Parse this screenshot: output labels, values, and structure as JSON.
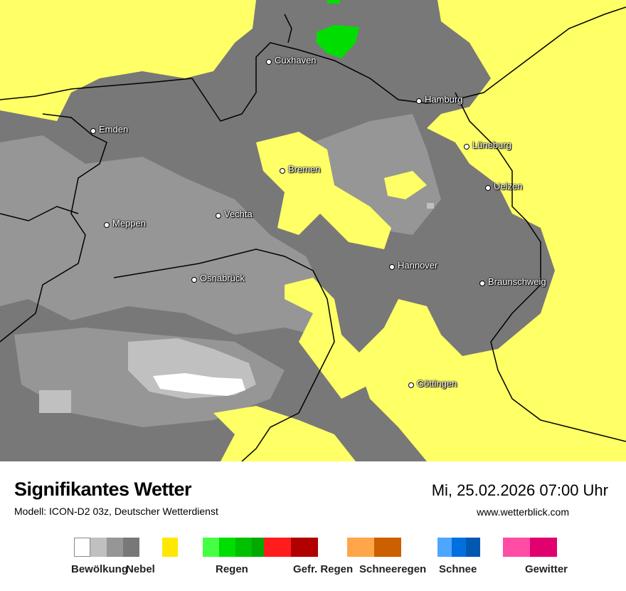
{
  "header": {
    "title": "Signifikantes Wetter",
    "subtitle": "Modell: ICON-D2 03z, Deutscher Wetterdienst",
    "datetime": "Mi, 25.02.2026 07:00 Uhr",
    "site": "www.wetterblick.com"
  },
  "cities": [
    {
      "name": "Cuxhaven"
    },
    {
      "name": "Hamburg"
    },
    {
      "name": "Emden"
    },
    {
      "name": "Lüneburg"
    },
    {
      "name": "Bremen"
    },
    {
      "name": "Uelzen"
    },
    {
      "name": "Vechta"
    },
    {
      "name": "Meppen"
    },
    {
      "name": "Hannover"
    },
    {
      "name": "Osnabrück"
    },
    {
      "name": "Braunschweig"
    },
    {
      "name": "Göttingen"
    }
  ],
  "legend": [
    {
      "label": "Bewölkung",
      "colors": [
        "#ffffff",
        "#c0c0c0",
        "#969696",
        "#787878"
      ]
    },
    {
      "label": "Nebel",
      "colors": [
        "#ffe800"
      ]
    },
    {
      "label": "Regen",
      "colors": [
        "#44ff44",
        "#00dd00",
        "#00c000",
        "#00aa00"
      ]
    },
    {
      "label": "Gefr. Regen",
      "colors": [
        "#ff1c1c",
        "#b00000"
      ]
    },
    {
      "label": "Schneeregen",
      "colors": [
        "#ffa54a",
        "#cc5f00"
      ]
    },
    {
      "label": "Schnee",
      "colors": [
        "#4da6ff",
        "#0070e0",
        "#0058b0"
      ]
    },
    {
      "label": "Gewitter",
      "colors": [
        "#ff4ca5",
        "#e00070"
      ]
    }
  ],
  "map_colors": {
    "dark_cloud": "#787878",
    "mid_cloud": "#969696",
    "light_cloud": "#c0c0c0",
    "clear": "#ffffff",
    "fog": "#ffff66",
    "rain": "#00dd00"
  }
}
